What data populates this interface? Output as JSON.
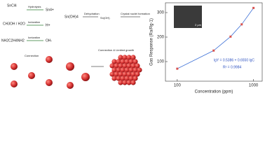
{
  "diagram": {
    "reactants": [
      "SnCl4",
      "CH3OH / H2O",
      "NH2C2H4NH2"
    ],
    "steps": [
      "Hydrolysis",
      "Ionization",
      "Ionization"
    ],
    "species": [
      "Sn4+",
      "H+",
      "OH-"
    ],
    "intermediate": "Sn(OH)4",
    "dehydration": "Dehydration",
    "nucleation": "Crystal nuclei formation",
    "connection": "Connection",
    "growth": "Connection & Limited growth"
  },
  "chart_data": {
    "type": "scatter",
    "x": [
      100,
      300,
      500,
      700,
      1000
    ],
    "series": [
      {
        "color": "#d9534f",
        "values": [
          71,
          145,
          202,
          252,
          319
        ]
      }
    ],
    "line_color": "#3b6fd6",
    "xlabel": "Concentration (ppm)",
    "ylabel": "Gas Response (Ra/Rg-1)",
    "log_x": true,
    "xlim": [
      70,
      1300
    ],
    "xticks": [
      100,
      1000
    ],
    "ylim": [
      20,
      340
    ],
    "yticks": [
      100,
      200,
      300
    ],
    "annotations": [
      "lgY = 0.5386 + 0.6550 lgC",
      "R² = 0.9984"
    ],
    "inset_label": "2 μm"
  }
}
